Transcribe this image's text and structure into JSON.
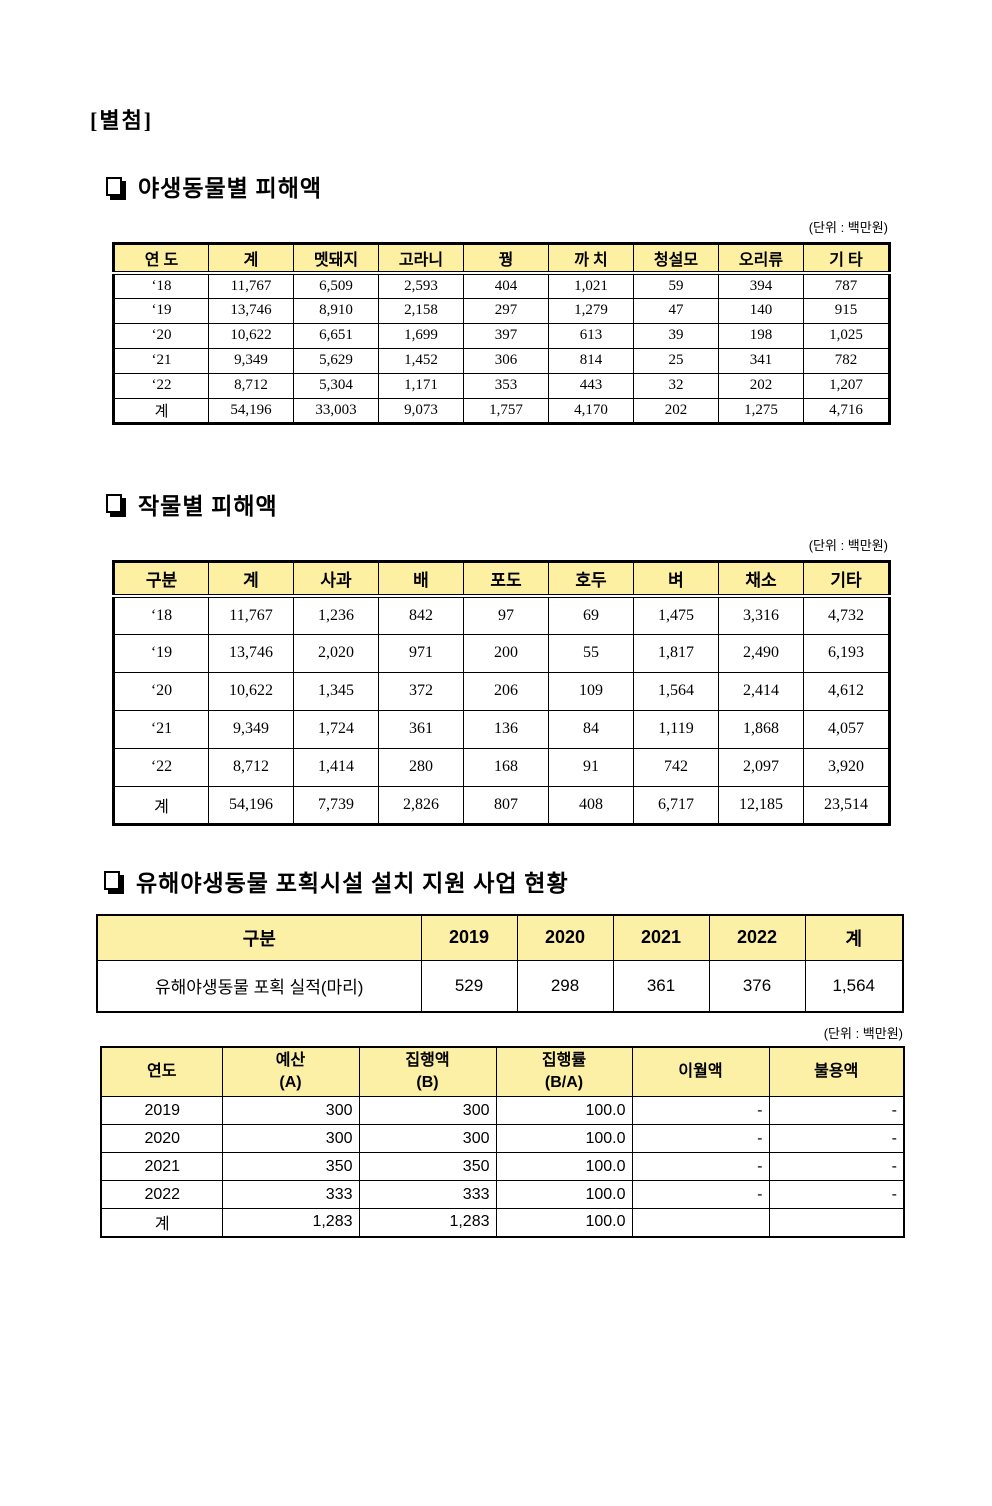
{
  "colors": {
    "table_header_bg": "#fdf0a2",
    "border": "#000000",
    "page_bg": "#ffffff"
  },
  "attachment_label": "[별첨]",
  "sections": [
    {
      "title": "야생동물별 피해액",
      "unit": "(단위 : 백만원)",
      "table": {
        "headers": [
          "연 도",
          "계",
          "멧돼지",
          "고라니",
          "꿩",
          "까 치",
          "청설모",
          "오리류",
          "기 타"
        ],
        "rows": [
          [
            "‘18",
            "11,767",
            "6,509",
            "2,593",
            "404",
            "1,021",
            "59",
            "394",
            "787"
          ],
          [
            "‘19",
            "13,746",
            "8,910",
            "2,158",
            "297",
            "1,279",
            "47",
            "140",
            "915"
          ],
          [
            "‘20",
            "10,622",
            "6,651",
            "1,699",
            "397",
            "613",
            "39",
            "198",
            "1,025"
          ],
          [
            "‘21",
            "9,349",
            "5,629",
            "1,452",
            "306",
            "814",
            "25",
            "341",
            "782"
          ],
          [
            "‘22",
            "8,712",
            "5,304",
            "1,171",
            "353",
            "443",
            "32",
            "202",
            "1,207"
          ],
          [
            "계",
            "54,196",
            "33,003",
            "9,073",
            "1,757",
            "4,170",
            "202",
            "1,275",
            "4,716"
          ]
        ]
      }
    },
    {
      "title": "작물별 피해액",
      "unit": "(단위 : 백만원)",
      "table": {
        "headers": [
          "구분",
          "계",
          "사과",
          "배",
          "포도",
          "호두",
          "벼",
          "채소",
          "기타"
        ],
        "rows": [
          [
            "‘18",
            "11,767",
            "1,236",
            "842",
            "97",
            "69",
            "1,475",
            "3,316",
            "4,732"
          ],
          [
            "‘19",
            "13,746",
            "2,020",
            "971",
            "200",
            "55",
            "1,817",
            "2,490",
            "6,193"
          ],
          [
            "‘20",
            "10,622",
            "1,345",
            "372",
            "206",
            "109",
            "1,564",
            "2,414",
            "4,612"
          ],
          [
            "‘21",
            "9,349",
            "1,724",
            "361",
            "136",
            "84",
            "1,119",
            "1,868",
            "4,057"
          ],
          [
            "‘22",
            "8,712",
            "1,414",
            "280",
            "168",
            "91",
            "742",
            "2,097",
            "3,920"
          ],
          [
            "계",
            "54,196",
            "7,739",
            "2,826",
            "807",
            "408",
            "6,717",
            "12,185",
            "23,514"
          ]
        ]
      }
    },
    {
      "title": "유해야생동물 포획시설 설치 지원 사업 현황",
      "unit": "(단위 : 백만원)",
      "capture_table": {
        "headers": [
          "구분",
          "2019",
          "2020",
          "2021",
          "2022",
          "계"
        ],
        "rows": [
          [
            "유해야생동물 포획 실적(마리)",
            "529",
            "298",
            "361",
            "376",
            "1,564"
          ]
        ]
      },
      "budget_table": {
        "headers": [
          "연도",
          "예산\n(A)",
          "집행액\n(B)",
          "집행률\n(B/A)",
          "이월액",
          "불용액"
        ],
        "rows": [
          [
            "2019",
            "300",
            "300",
            "100.0",
            "-",
            "-"
          ],
          [
            "2020",
            "300",
            "300",
            "100.0",
            "-",
            "-"
          ],
          [
            "2021",
            "350",
            "350",
            "100.0",
            "-",
            "-"
          ],
          [
            "2022",
            "333",
            "333",
            "100.0",
            "-",
            "-"
          ],
          [
            "계",
            "1,283",
            "1,283",
            "100.0",
            "",
            ""
          ]
        ]
      }
    }
  ]
}
